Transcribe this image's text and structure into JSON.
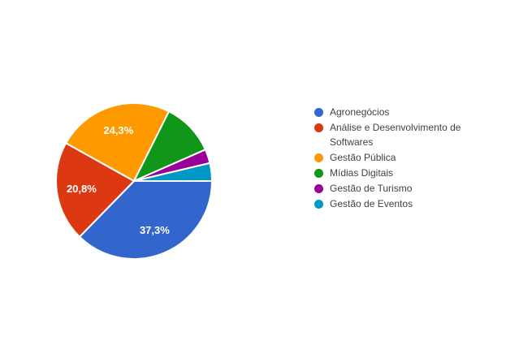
{
  "page": {
    "background_color": "#ffffff"
  },
  "chart_data": {
    "type": "pie",
    "title": "",
    "legend_position": "right",
    "start_angle_deg": 0,
    "direction": "clockwise",
    "slice_label_color": "#ffffff",
    "legend_text_color": "#424242",
    "slices": [
      {
        "name": "Agronegócios",
        "pct": 37.3,
        "label": "37,3%",
        "color": "#3366cc"
      },
      {
        "name": "Análise e Desenvolvimento de Softwares",
        "pct": 20.8,
        "label": "20,8%",
        "color": "#dc3912"
      },
      {
        "name": "Gestão Pública",
        "pct": 24.3,
        "label": "24,3%",
        "color": "#ff9900"
      },
      {
        "name": "Mídias Digitais",
        "pct": 11.0,
        "label": "",
        "pct_estimated": true,
        "color": "#109618"
      },
      {
        "name": "Gestão de Turismo",
        "pct": 2.9,
        "label": "",
        "pct_estimated": true,
        "color": "#990099"
      },
      {
        "name": "Gestão de Eventos",
        "pct": 3.7,
        "label": "",
        "pct_estimated": true,
        "color": "#0099c6"
      }
    ]
  }
}
